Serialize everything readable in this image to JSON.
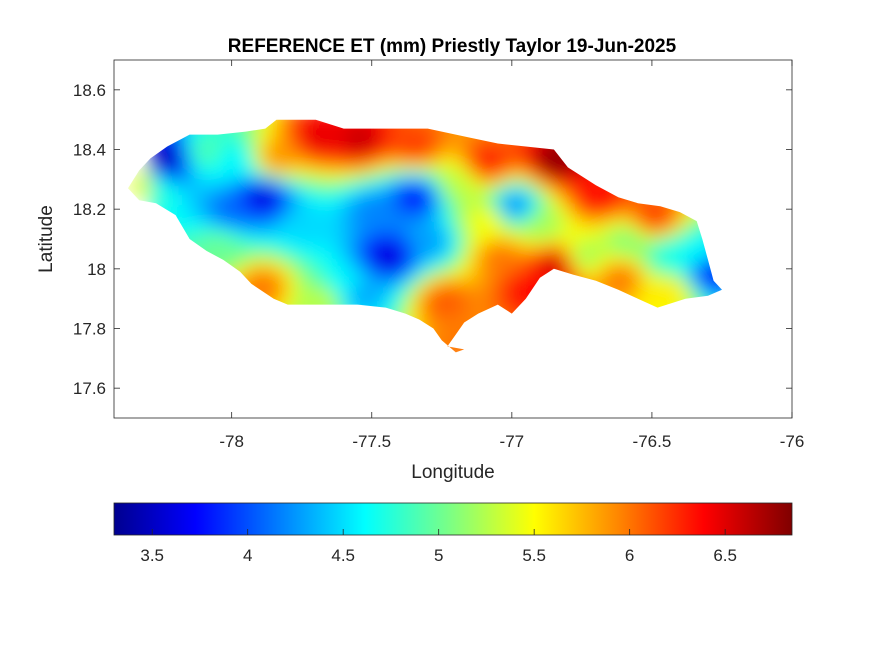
{
  "chart_data": {
    "type": "heatmap",
    "title": "REFERENCE ET (mm) Priestly Taylor 19-Jun-2025",
    "xlabel": "Longitude",
    "ylabel": "Latitude",
    "xlim": [
      -78.42,
      -76.0
    ],
    "ylim": [
      17.5,
      18.7
    ],
    "x_ticks": [
      -78,
      -77.5,
      -77,
      -76.5,
      -76
    ],
    "x_tick_labels": [
      "-78",
      "-77.5",
      "-77",
      "-76.5",
      "-76"
    ],
    "y_ticks": [
      18.6,
      18.4,
      18.2,
      18.0,
      17.8,
      17.6
    ],
    "y_tick_labels": [
      "18.6",
      "18.4",
      "18.2",
      "18",
      "17.8",
      "17.6"
    ],
    "colormap": "jet",
    "colorbar": {
      "location": "bottom",
      "clim": [
        3.3,
        6.85
      ],
      "ticks": [
        3.5,
        4,
        4.5,
        5,
        5.5,
        6,
        6.5
      ],
      "tick_labels": [
        "3.5",
        "4",
        "4.5",
        "5",
        "5.5",
        "6",
        "6.5"
      ],
      "colors": [
        "#00008f",
        "#0000ff",
        "#0080ff",
        "#00ffff",
        "#80ff80",
        "#ffff00",
        "#ff8000",
        "#ff0000",
        "#800000"
      ]
    },
    "region": "Jamaica",
    "outline_lonlat": [
      [
        -78.37,
        18.27
      ],
      [
        -78.33,
        18.33
      ],
      [
        -78.29,
        18.37
      ],
      [
        -78.23,
        18.41
      ],
      [
        -78.15,
        18.45
      ],
      [
        -78.05,
        18.45
      ],
      [
        -77.95,
        18.46
      ],
      [
        -77.88,
        18.47
      ],
      [
        -77.84,
        18.5
      ],
      [
        -77.7,
        18.5
      ],
      [
        -77.6,
        18.47
      ],
      [
        -77.45,
        18.47
      ],
      [
        -77.3,
        18.47
      ],
      [
        -77.15,
        18.44
      ],
      [
        -77.05,
        18.42
      ],
      [
        -76.95,
        18.41
      ],
      [
        -76.85,
        18.4
      ],
      [
        -76.8,
        18.34
      ],
      [
        -76.7,
        18.28
      ],
      [
        -76.62,
        18.24
      ],
      [
        -76.55,
        18.22
      ],
      [
        -76.47,
        18.21
      ],
      [
        -76.4,
        18.19
      ],
      [
        -76.34,
        18.16
      ],
      [
        -76.32,
        18.1
      ],
      [
        -76.3,
        18.03
      ],
      [
        -76.28,
        17.96
      ],
      [
        -76.25,
        17.93
      ],
      [
        -76.3,
        17.91
      ],
      [
        -76.38,
        17.9
      ],
      [
        -76.48,
        17.87
      ],
      [
        -76.55,
        17.9
      ],
      [
        -76.62,
        17.93
      ],
      [
        -76.7,
        17.96
      ],
      [
        -76.78,
        17.98
      ],
      [
        -76.85,
        18.0
      ],
      [
        -76.9,
        17.97
      ],
      [
        -76.95,
        17.9
      ],
      [
        -77.0,
        17.85
      ],
      [
        -77.05,
        17.88
      ],
      [
        -77.12,
        17.85
      ],
      [
        -77.17,
        17.82
      ],
      [
        -77.2,
        17.78
      ],
      [
        -77.23,
        17.74
      ],
      [
        -77.17,
        17.73
      ],
      [
        -77.2,
        17.72
      ],
      [
        -77.25,
        17.76
      ],
      [
        -77.28,
        17.8
      ],
      [
        -77.33,
        17.83
      ],
      [
        -77.38,
        17.85
      ],
      [
        -77.45,
        17.87
      ],
      [
        -77.55,
        17.88
      ],
      [
        -77.7,
        17.88
      ],
      [
        -77.8,
        17.88
      ],
      [
        -77.85,
        17.9
      ],
      [
        -77.93,
        17.95
      ],
      [
        -77.97,
        17.99
      ],
      [
        -78.03,
        18.03
      ],
      [
        -78.09,
        18.06
      ],
      [
        -78.15,
        18.1
      ],
      [
        -78.2,
        18.18
      ],
      [
        -78.27,
        18.22
      ],
      [
        -78.33,
        18.23
      ],
      [
        -78.37,
        18.27
      ]
    ],
    "field_centers": [
      {
        "lon": -78.3,
        "lat": 18.27,
        "value": 4.8
      },
      {
        "lon": -78.24,
        "lat": 18.38,
        "value": 3.5
      },
      {
        "lon": -78.1,
        "lat": 18.4,
        "value": 4.9
      },
      {
        "lon": -78.0,
        "lat": 18.37,
        "value": 4.6
      },
      {
        "lon": -77.85,
        "lat": 18.38,
        "value": 5.9
      },
      {
        "lon": -77.7,
        "lat": 18.45,
        "value": 6.5
      },
      {
        "lon": -77.55,
        "lat": 18.44,
        "value": 6.6
      },
      {
        "lon": -77.35,
        "lat": 18.42,
        "value": 6.2
      },
      {
        "lon": -77.1,
        "lat": 18.36,
        "value": 6.3
      },
      {
        "lon": -76.85,
        "lat": 18.37,
        "value": 6.8
      },
      {
        "lon": -76.7,
        "lat": 18.25,
        "value": 6.4
      },
      {
        "lon": -76.5,
        "lat": 18.18,
        "value": 6.2
      },
      {
        "lon": -76.34,
        "lat": 18.06,
        "value": 4.6
      },
      {
        "lon": -76.3,
        "lat": 18.0,
        "value": 3.8
      },
      {
        "lon": -76.45,
        "lat": 17.93,
        "value": 5.6
      },
      {
        "lon": -76.62,
        "lat": 17.98,
        "value": 6.0
      },
      {
        "lon": -76.75,
        "lat": 18.05,
        "value": 5.2
      },
      {
        "lon": -76.85,
        "lat": 18.02,
        "value": 6.6
      },
      {
        "lon": -76.95,
        "lat": 17.94,
        "value": 6.4
      },
      {
        "lon": -77.05,
        "lat": 18.05,
        "value": 6.0
      },
      {
        "lon": -77.1,
        "lat": 18.17,
        "value": 5.5
      },
      {
        "lon": -77.25,
        "lat": 17.9,
        "value": 6.1
      },
      {
        "lon": -77.2,
        "lat": 17.75,
        "value": 6.0
      },
      {
        "lon": -77.3,
        "lat": 18.1,
        "value": 4.3
      },
      {
        "lon": -77.45,
        "lat": 18.05,
        "value": 3.6
      },
      {
        "lon": -77.5,
        "lat": 18.2,
        "value": 4.2
      },
      {
        "lon": -77.6,
        "lat": 17.95,
        "value": 4.6
      },
      {
        "lon": -77.75,
        "lat": 18.15,
        "value": 4.5
      },
      {
        "lon": -77.9,
        "lat": 18.25,
        "value": 3.6
      },
      {
        "lon": -78.0,
        "lat": 18.2,
        "value": 4.1
      },
      {
        "lon": -78.05,
        "lat": 18.08,
        "value": 5.0
      },
      {
        "lon": -77.9,
        "lat": 17.95,
        "value": 6.0
      },
      {
        "lon": -77.68,
        "lat": 17.9,
        "value": 5.3
      },
      {
        "lon": -77.55,
        "lat": 17.92,
        "value": 4.3
      },
      {
        "lon": -77.35,
        "lat": 18.25,
        "value": 3.8
      },
      {
        "lon": -77.2,
        "lat": 18.3,
        "value": 5.3
      },
      {
        "lon": -77.0,
        "lat": 18.22,
        "value": 4.2
      },
      {
        "lon": -76.9,
        "lat": 18.15,
        "value": 5.2
      },
      {
        "lon": -76.6,
        "lat": 18.1,
        "value": 5.1
      },
      {
        "lon": -76.45,
        "lat": 18.05,
        "value": 4.7
      }
    ]
  }
}
